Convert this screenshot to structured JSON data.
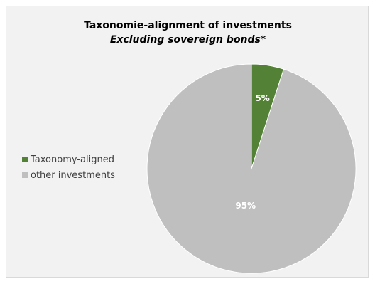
{
  "chart_data": {
    "type": "pie",
    "title": "Taxonomie-alignment of investments",
    "subtitle": "Excluding sovereign bonds*",
    "legend_position": "left",
    "categories": [
      "Taxonomy-aligned",
      "other investments"
    ],
    "values": [
      5,
      95
    ],
    "labels": [
      "5%",
      "95%"
    ],
    "colors": [
      "#538135",
      "#bfbfbf"
    ],
    "background_color": "#f2f2f2"
  }
}
